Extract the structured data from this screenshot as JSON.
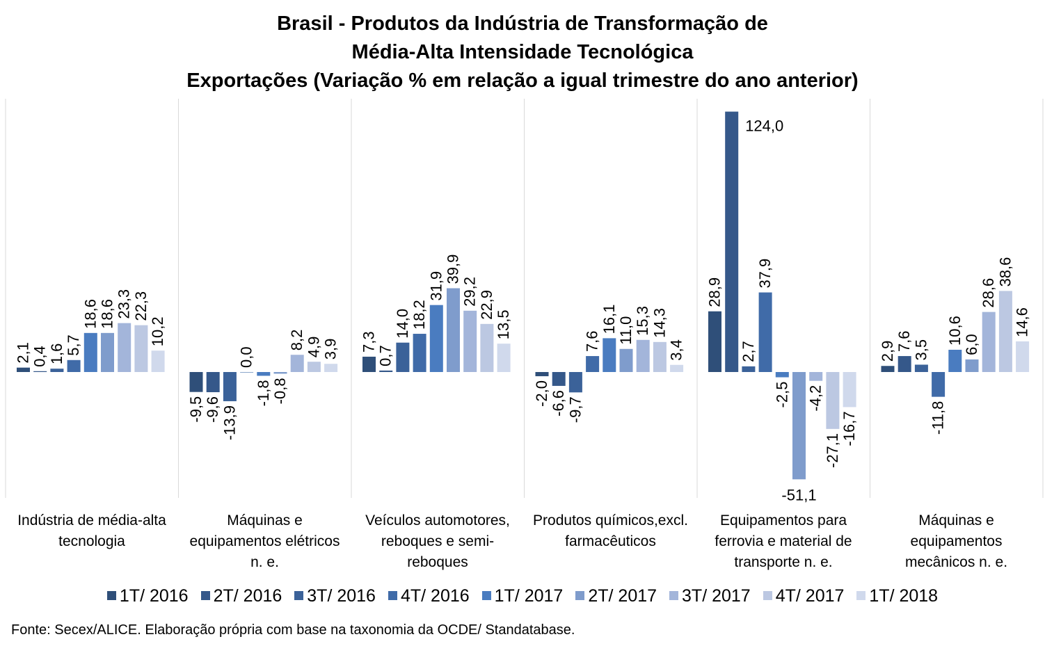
{
  "title_lines": [
    "Brasil - Produtos da Indústria de Transformação de",
    "Média-Alta Intensidade Tecnológica",
    "Exportações (Variação % em relação a igual trimestre do ano anterior)"
  ],
  "source": "Fonte: Secex/ALICE. Elaboração própria com base na taxonomia da OCDE/ Standatabase.",
  "chart_data": {
    "type": "bar",
    "categories": [
      "Indústria de média-alta tecnologia",
      "Máquinas e equipamentos elétricos n. e.",
      "Veículos automotores, reboques e semi-reboques",
      "Produtos químicos,excl. farmacêuticos",
      "Equipamentos para ferrovia e material de transporte n. e.",
      "Máquinas e equipamentos mecânicos  n. e."
    ],
    "series": [
      {
        "name": "1T/ 2016",
        "color": "#2f4f79",
        "values": [
          2.1,
          -9.5,
          7.3,
          -2.0,
          28.9,
          2.9
        ]
      },
      {
        "name": "2T/ 2016",
        "color": "#35588a",
        "values": [
          0.4,
          -9.6,
          0.7,
          -6.6,
          124.0,
          7.6
        ]
      },
      {
        "name": "3T/ 2016",
        "color": "#3b6299",
        "values": [
          1.6,
          -13.9,
          14.0,
          -9.7,
          2.7,
          3.5
        ]
      },
      {
        "name": "4T/ 2016",
        "color": "#406ba8",
        "values": [
          5.7,
          0.0,
          18.2,
          7.6,
          37.9,
          -11.8
        ]
      },
      {
        "name": "1T/ 2017",
        "color": "#4a7cc0",
        "values": [
          18.6,
          -1.8,
          31.9,
          16.1,
          -2.5,
          10.6
        ]
      },
      {
        "name": "2T/ 2017",
        "color": "#7f9ccc",
        "values": [
          18.6,
          -0.8,
          39.9,
          11.0,
          -51.1,
          6.0
        ]
      },
      {
        "name": "3T/ 2017",
        "color": "#a3b5da",
        "values": [
          23.3,
          8.2,
          29.2,
          15.3,
          -4.2,
          28.6
        ]
      },
      {
        "name": "4T/ 2017",
        "color": "#bcc8e2",
        "values": [
          22.3,
          4.9,
          22.9,
          14.3,
          -27.1,
          38.6
        ]
      },
      {
        "name": "1T/ 2018",
        "color": "#d0d9ec",
        "values": [
          10.2,
          3.9,
          13.5,
          3.4,
          -16.7,
          14.6
        ]
      }
    ],
    "ylim": [
      -60,
      130
    ],
    "grid": false,
    "legend": "bottom",
    "decimal_separator": ","
  }
}
